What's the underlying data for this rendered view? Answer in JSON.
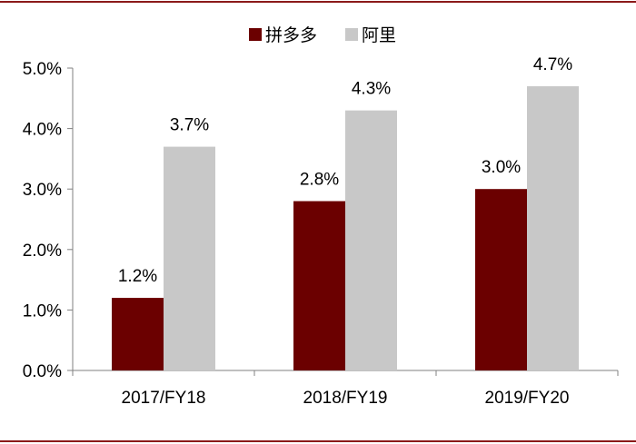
{
  "chart_data": {
    "type": "bar",
    "categories": [
      "2017/FY18",
      "2018/FY19",
      "2019/FY20"
    ],
    "series": [
      {
        "name": "拼多多",
        "color": "#6b0000",
        "values": [
          1.2,
          2.8,
          3.0
        ],
        "labels": [
          "1.2%",
          "2.8%",
          "3.0%"
        ]
      },
      {
        "name": "阿里",
        "color": "#c8c8c8",
        "values": [
          3.7,
          4.3,
          4.7
        ],
        "labels": [
          "3.7%",
          "4.3%",
          "4.7%"
        ]
      }
    ],
    "ylim": [
      0,
      5.0
    ],
    "yticks": [
      0.0,
      1.0,
      2.0,
      3.0,
      4.0,
      5.0
    ],
    "ytick_labels": [
      "0.0%",
      "1.0%",
      "2.0%",
      "3.0%",
      "4.0%",
      "5.0%"
    ],
    "legend_position": "top-center",
    "grid": false
  },
  "frame_color": "#8b1a1a"
}
